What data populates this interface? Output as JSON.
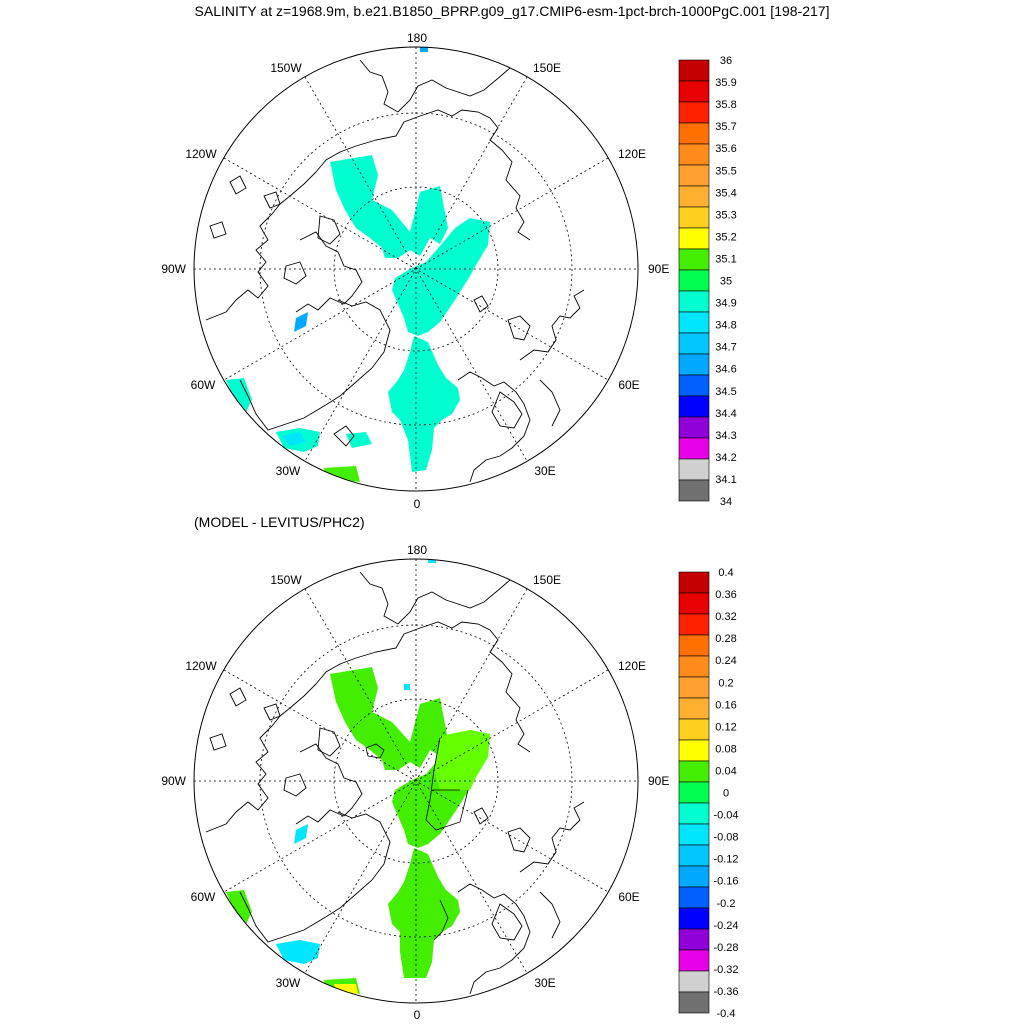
{
  "title": "SALINITY at z=1968.9m, b.e21.B1850_BPRP.g09_g17.CMIP6-esm-1pct-brch-1000PgC.001 [198-217]",
  "diff_title": "(MODEL - LEVITUS/PHC2)",
  "lon_labels": {
    "top": "180",
    "bottom": "0",
    "left": "90W",
    "right": "90E",
    "ul1": "150W",
    "ul2": "120W",
    "ur1": "150E",
    "ur2": "120E",
    "ll1": "60W",
    "ll2": "30W",
    "lr1": "60E",
    "lr2": "30E"
  },
  "chart_data": [
    {
      "type": "heatmap",
      "name": "salinity",
      "projection": "north polar stereographic",
      "colorbar_labels": [
        "36",
        "35.9",
        "35.8",
        "35.7",
        "35.6",
        "35.5",
        "35.4",
        "35.3",
        "35.2",
        "35.1",
        "35",
        "34.9",
        "34.8",
        "34.7",
        "34.6",
        "34.5",
        "34.4",
        "34.3",
        "34.2",
        "34.1",
        "34"
      ],
      "colorbar_colors": [
        "#c40000",
        "#e80000",
        "#ff2200",
        "#ff7000",
        "#ff8c1a",
        "#ffa030",
        "#ffb030",
        "#ffd020",
        "#ffff00",
        "#44ee00",
        "#00ff50",
        "#00ffd0",
        "#00e6ff",
        "#00c8ff",
        "#00a8ff",
        "#0060ff",
        "#0000ff",
        "#9000d8",
        "#e800e8",
        "#d0d0d0",
        "#707070"
      ]
    },
    {
      "type": "heatmap",
      "name": "difference",
      "projection": "north polar stereographic",
      "colorbar_labels": [
        "0.4",
        "0.36",
        "0.32",
        "0.28",
        "0.24",
        "0.2",
        "0.16",
        "0.12",
        "0.08",
        "0.04",
        "0",
        "-0.04",
        "-0.08",
        "-0.12",
        "-0.16",
        "-0.2",
        "-0.24",
        "-0.28",
        "-0.32",
        "-0.36",
        "-0.4"
      ],
      "colorbar_colors": [
        "#c40000",
        "#e80000",
        "#ff2200",
        "#ff7000",
        "#ff8c1a",
        "#ffa030",
        "#ffb030",
        "#ffd020",
        "#ffff00",
        "#44ee00",
        "#00ff50",
        "#00ffd0",
        "#00e6ff",
        "#00c8ff",
        "#00a8ff",
        "#0060ff",
        "#0000ff",
        "#9000d8",
        "#e800e8",
        "#d0d0d0",
        "#707070"
      ]
    }
  ]
}
